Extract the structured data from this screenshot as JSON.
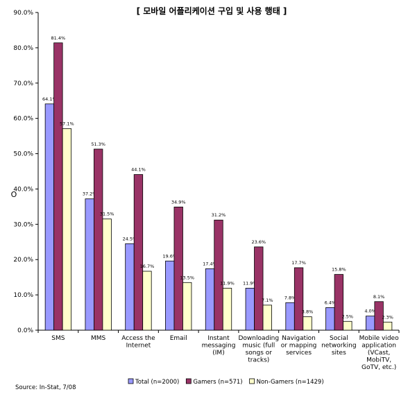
{
  "chart_data": {
    "type": "bar",
    "title": "[ 모바일 어플리케이션 구입 및 사용 행태 ]",
    "ylabel": "O",
    "ylim": [
      0,
      90
    ],
    "yticks": [
      "0.0%",
      "10.0%",
      "20.0%",
      "30.0%",
      "40.0%",
      "50.0%",
      "60.0%",
      "70.0%",
      "80.0%",
      "90.0%"
    ],
    "grid": false,
    "legend_position": "bottom",
    "categories": [
      [
        "SMS"
      ],
      [
        "MMS"
      ],
      [
        "Access the",
        "Internet"
      ],
      [
        "Email"
      ],
      [
        "Instant",
        "messaging",
        "(IM)"
      ],
      [
        "Downloading",
        "music (full",
        "songs or",
        "tracks)"
      ],
      [
        "Navigation",
        "or mapping",
        "services"
      ],
      [
        "Social",
        "networking",
        "sites"
      ],
      [
        "Mobile video",
        "application",
        "(VCast,",
        "MobiTV,",
        "GoTV, etc.)"
      ]
    ],
    "series": [
      {
        "name": "Total (n=2000)",
        "color": "#9999FF",
        "values": [
          64.1,
          37.2,
          24.5,
          19.6,
          17.4,
          11.9,
          7.8,
          6.4,
          4.0
        ],
        "labels": [
          "64.1%",
          "37.2%",
          "24.5%",
          "19.6%",
          "17.4%",
          "11.9%",
          "7.8%",
          "6.4%",
          "4.0%"
        ]
      },
      {
        "name": "Gamers (n=571)",
        "color": "#993366",
        "values": [
          81.4,
          51.3,
          44.1,
          34.9,
          31.2,
          23.6,
          17.7,
          15.8,
          8.1
        ],
        "labels": [
          "81.4%",
          "51.3%",
          "44.1%",
          "34.9%",
          "31.2%",
          "23.6%",
          "17.7%",
          "15.8%",
          "8.1%"
        ]
      },
      {
        "name": "Non-Gamers (n=1429)",
        "color": "#FFFFCC",
        "values": [
          57.1,
          31.5,
          16.7,
          13.5,
          11.9,
          7.1,
          3.8,
          2.5,
          2.3
        ],
        "labels": [
          "57.1%",
          "31.5%",
          "16.7%",
          "13.5%",
          "11.9%",
          "7.1%",
          "3.8%",
          "2.5%",
          "2.3%"
        ]
      }
    ],
    "source": "Source: In-Stat, 7/08"
  }
}
